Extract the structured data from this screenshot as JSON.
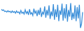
{
  "chart_data": {
    "type": "line",
    "color": "#3b8fd9",
    "ylim": [
      0,
      100
    ],
    "tick_labels": false,
    "grid": false,
    "values": [
      72,
      68,
      70,
      64,
      66,
      62,
      67,
      63,
      65,
      60,
      66,
      61,
      64,
      58,
      66,
      60,
      63,
      56,
      68,
      58,
      62,
      55,
      70,
      57,
      64,
      52,
      72,
      55,
      60,
      50,
      74,
      58,
      66,
      48,
      70,
      52,
      78,
      45,
      62,
      55,
      82,
      42,
      70,
      50,
      86,
      38,
      64,
      48,
      90,
      35,
      72,
      44,
      88,
      30,
      68,
      52,
      92,
      32,
      76,
      40,
      90,
      28,
      70,
      46,
      94,
      34,
      60,
      38,
      86,
      30,
      80,
      40,
      88,
      6,
      20,
      62
    ]
  }
}
